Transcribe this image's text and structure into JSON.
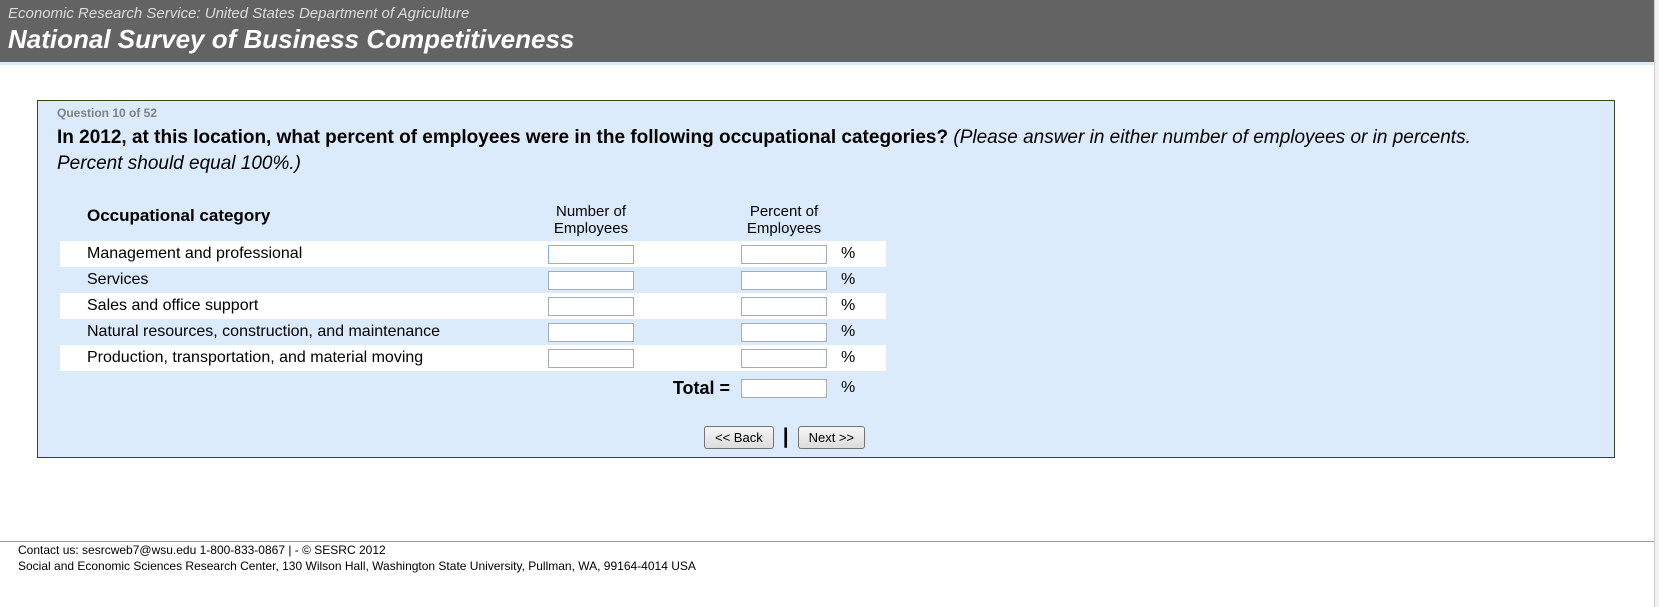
{
  "header": {
    "agency_line": "Economic Research Service: United States Department of Agriculture",
    "survey_title": "National Survey of Business Competitiveness"
  },
  "question_panel": {
    "progress": "Question 10 of 52",
    "question_bold": "In 2012, at this location, what percent of employees were in the following occupational categories?",
    "question_note": "(Please answer in either number of employees or in percents. Percent should equal 100%.)",
    "table": {
      "category_header": "Occupational category",
      "number_header": "Number of Employees",
      "percent_header": "Percent of Employees",
      "percent_symbol": "%",
      "rows": [
        {
          "label": "Management and professional",
          "number_value": "",
          "percent_value": ""
        },
        {
          "label": "Services",
          "number_value": "",
          "percent_value": ""
        },
        {
          "label": "Sales and office support",
          "number_value": "",
          "percent_value": ""
        },
        {
          "label": "Natural resources, construction, and maintenance",
          "number_value": "",
          "percent_value": ""
        },
        {
          "label": "Production, transportation, and material moving",
          "number_value": "",
          "percent_value": ""
        }
      ],
      "total_label": "Total =",
      "total_value": ""
    },
    "buttons": {
      "back_label": "<< Back",
      "separator": "|",
      "next_label": "Next >>"
    }
  },
  "footer": {
    "line1": "Contact us: sesrcweb7@wsu.edu 1-800-833-0867 | - © SESRC 2012",
    "line2": "Social and Economic Sciences Research Center, 130 Wilson Hall, Washington State University, Pullman, WA, 99164-4014 USA"
  },
  "colors": {
    "header_bg": "#636363",
    "panel_bg": "#dcebfb",
    "panel_border": "#3a451c",
    "focused_input_border": "#7eb4ea"
  }
}
